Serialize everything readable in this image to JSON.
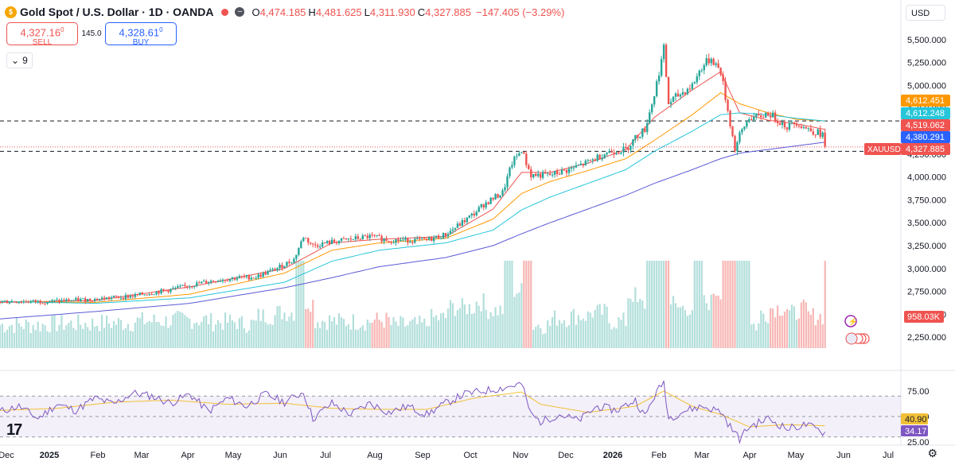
{
  "header": {
    "symbol_title": "Gold Spot / U.S. Dollar · 1D · OANDA",
    "open_label": "O",
    "open": "4,474.185",
    "high_label": "H",
    "high": "4,481.625",
    "low_label": "L",
    "low": "4,311.930",
    "close_label": "C",
    "close": "4,327.885",
    "change": "−147.405 (−3.29%)"
  },
  "trade": {
    "sell_price": "4,327.16",
    "sell_price_sup": "0",
    "sell_label": "SELL",
    "spread": "145.0",
    "buy_price": "4,328.61",
    "buy_price_sup": "0",
    "buy_label": "BUY"
  },
  "ma_chip": {
    "count": "9"
  },
  "currency": "USD",
  "colors": {
    "up": "#26a69a",
    "down": "#ef5350",
    "ma_fast": "#ef5350",
    "ma_mid": "#ff9800",
    "ma_slow": "#26c6da",
    "ma_long": "#5b5bd6",
    "rsi": "#7e57c2",
    "rsi_ma": "#f2c037"
  },
  "chart_data": {
    "type": "candlestick",
    "x_tick_labels": [
      "Dec",
      "2025",
      "Feb",
      "Mar",
      "Apr",
      "May",
      "Jun",
      "Jul",
      "Aug",
      "Sep",
      "Oct",
      "Nov",
      "Dec",
      "2026",
      "Feb",
      "Mar",
      "Apr",
      "May",
      "Jun",
      "Jul"
    ],
    "y_axis": {
      "ticks": [
        5500,
        5250,
        5000,
        4750,
        4500,
        4250,
        4000,
        3750,
        3500,
        3250,
        3000,
        2750,
        2500,
        2250
      ],
      "tick_labels": [
        "5,500.000",
        "5,250.000",
        "5,000.000",
        "4,750.000",
        "4,500.000",
        "4,250.000",
        "4,000.000",
        "3,750.000",
        "3,500.000",
        "3,250.000",
        "3,000.000",
        "2,750.000",
        "2,500.000",
        "2,250.000"
      ],
      "ylim": [
        2200,
        5620
      ]
    },
    "price_path": [
      [
        0,
        2640
      ],
      [
        5,
        2640
      ],
      [
        10,
        2665
      ],
      [
        14,
        2700
      ],
      [
        18,
        2770
      ],
      [
        22,
        2860
      ],
      [
        25,
        2900
      ],
      [
        27,
        2910
      ],
      [
        29,
        2990
      ],
      [
        31,
        3100
      ],
      [
        32,
        3350
      ],
      [
        33,
        3250
      ],
      [
        35,
        3290
      ],
      [
        39,
        3350
      ],
      [
        41,
        3310
      ],
      [
        45,
        3310
      ],
      [
        47,
        3370
      ],
      [
        50,
        3600
      ],
      [
        51,
        3700
      ],
      [
        53,
        3830
      ],
      [
        54,
        4150
      ],
      [
        55,
        4300
      ],
      [
        55.5,
        4150
      ],
      [
        56,
        4020
      ],
      [
        58,
        4020
      ],
      [
        60,
        4080
      ],
      [
        62,
        4160
      ],
      [
        64,
        4270
      ],
      [
        66,
        4300
      ],
      [
        67,
        4430
      ],
      [
        68,
        4520
      ],
      [
        69,
        4900
      ],
      [
        70,
        5400
      ],
      [
        70.5,
        4800
      ],
      [
        71,
        4850
      ],
      [
        73,
        5000
      ],
      [
        74,
        5200
      ],
      [
        75,
        5300
      ],
      [
        76,
        5150
      ],
      [
        77.5,
        4300
      ],
      [
        78,
        4450
      ],
      [
        79,
        4650
      ],
      [
        80,
        4650
      ],
      [
        81,
        4700
      ],
      [
        83,
        4550
      ],
      [
        84,
        4600
      ],
      [
        85,
        4530
      ],
      [
        86.8,
        4460
      ],
      [
        87,
        4328
      ]
    ],
    "moving_averages": [
      {
        "name": "",
        "color": "#ef5350",
        "values": [
          [
            0,
            2630
          ],
          [
            10,
            2650
          ],
          [
            20,
            2800
          ],
          [
            30,
            3000
          ],
          [
            35,
            3280
          ],
          [
            40,
            3320
          ],
          [
            47,
            3350
          ],
          [
            52,
            3650
          ],
          [
            55,
            4050
          ],
          [
            58,
            4050
          ],
          [
            62,
            4150
          ],
          [
            66,
            4300
          ],
          [
            69,
            4650
          ],
          [
            73,
            4950
          ],
          [
            76,
            5150
          ],
          [
            78,
            4700
          ],
          [
            81,
            4620
          ],
          [
            84,
            4580
          ],
          [
            87,
            4519
          ]
        ]
      },
      {
        "name": "",
        "color": "#ff9800",
        "values": [
          [
            0,
            2640
          ],
          [
            10,
            2630
          ],
          [
            20,
            2720
          ],
          [
            30,
            2950
          ],
          [
            35,
            3200
          ],
          [
            40,
            3280
          ],
          [
            47,
            3330
          ],
          [
            52,
            3540
          ],
          [
            55,
            3820
          ],
          [
            58,
            3950
          ],
          [
            62,
            4070
          ],
          [
            66,
            4200
          ],
          [
            69,
            4400
          ],
          [
            73,
            4680
          ],
          [
            76,
            4920
          ],
          [
            78,
            4800
          ],
          [
            81,
            4700
          ],
          [
            84,
            4630
          ],
          [
            87,
            4612
          ]
        ]
      },
      {
        "name": "",
        "color": "#26c6da",
        "values": [
          [
            0,
            2640
          ],
          [
            10,
            2620
          ],
          [
            20,
            2680
          ],
          [
            30,
            2850
          ],
          [
            35,
            3080
          ],
          [
            40,
            3200
          ],
          [
            47,
            3280
          ],
          [
            52,
            3420
          ],
          [
            55,
            3640
          ],
          [
            58,
            3780
          ],
          [
            62,
            3930
          ],
          [
            66,
            4080
          ],
          [
            69,
            4280
          ],
          [
            73,
            4500
          ],
          [
            76,
            4680
          ],
          [
            78,
            4700
          ],
          [
            81,
            4680
          ],
          [
            84,
            4640
          ],
          [
            87,
            4612
          ]
        ]
      },
      {
        "name": "",
        "color": "#5b5bd6",
        "values": [
          [
            0,
            2450
          ],
          [
            10,
            2530
          ],
          [
            20,
            2620
          ],
          [
            30,
            2790
          ],
          [
            35,
            2900
          ],
          [
            40,
            3020
          ],
          [
            47,
            3120
          ],
          [
            52,
            3250
          ],
          [
            55,
            3380
          ],
          [
            58,
            3500
          ],
          [
            62,
            3650
          ],
          [
            66,
            3800
          ],
          [
            69,
            3930
          ],
          [
            73,
            4080
          ],
          [
            76,
            4200
          ],
          [
            78,
            4260
          ],
          [
            81,
            4300
          ],
          [
            84,
            4340
          ],
          [
            87,
            4380
          ]
        ]
      }
    ],
    "price_labels": [
      {
        "value": 4612.451,
        "text": "4,612.451",
        "color": "#ff9800"
      },
      {
        "value": 4612.248,
        "text": "4,612.248",
        "color": "#26c6da"
      },
      {
        "value": 4519.062,
        "text": "4,519.062",
        "color": "#ef5350"
      },
      {
        "value": 4380.291,
        "text": "4,380.291",
        "color": "#2962ff"
      },
      {
        "value": 4327.885,
        "text": "4,327.885",
        "color": "#ef5350"
      }
    ],
    "symbol_tag": "XAUUSD",
    "horizontal_lines": [
      4612,
      4280
    ],
    "volume": {
      "last_label": "958.03K",
      "max": 1.6
    },
    "rsi": {
      "ticks": [
        75,
        50,
        25
      ],
      "tick_labels": [
        "75.00",
        "50.00",
        "25.00"
      ],
      "ylim": [
        22,
        92
      ],
      "value": 34.17,
      "value_label": "34.17",
      "ma_value": 40.9,
      "ma_label": "40.90",
      "path": [
        [
          0,
          55
        ],
        [
          2,
          60
        ],
        [
          4,
          48
        ],
        [
          6,
          62
        ],
        [
          8,
          56
        ],
        [
          10,
          68
        ],
        [
          12,
          62
        ],
        [
          14,
          73
        ],
        [
          16,
          70
        ],
        [
          18,
          63
        ],
        [
          20,
          72
        ],
        [
          22,
          55
        ],
        [
          24,
          68
        ],
        [
          26,
          60
        ],
        [
          28,
          72
        ],
        [
          30,
          64
        ],
        [
          32,
          74
        ],
        [
          33,
          48
        ],
        [
          35,
          63
        ],
        [
          37,
          52
        ],
        [
          39,
          63
        ],
        [
          41,
          54
        ],
        [
          43,
          60
        ],
        [
          45,
          52
        ],
        [
          47,
          63
        ],
        [
          49,
          72
        ],
        [
          51,
          75
        ],
        [
          53,
          78
        ],
        [
          55,
          82
        ],
        [
          56,
          52
        ],
        [
          57,
          45
        ],
        [
          59,
          52
        ],
        [
          61,
          46
        ],
        [
          63,
          60
        ],
        [
          65,
          56
        ],
        [
          67,
          66
        ],
        [
          68,
          50
        ],
        [
          69,
          70
        ],
        [
          70,
          84
        ],
        [
          70.5,
          48
        ],
        [
          72,
          55
        ],
        [
          74,
          60
        ],
        [
          76,
          55
        ],
        [
          77,
          40
        ],
        [
          78,
          28
        ],
        [
          79,
          40
        ],
        [
          81,
          48
        ],
        [
          83,
          38
        ],
        [
          85,
          42
        ],
        [
          87,
          34
        ]
      ],
      "ma_path": [
        [
          0,
          56
        ],
        [
          6,
          58
        ],
        [
          12,
          64
        ],
        [
          18,
          66
        ],
        [
          24,
          62
        ],
        [
          30,
          63
        ],
        [
          35,
          58
        ],
        [
          40,
          57
        ],
        [
          45,
          57
        ],
        [
          50,
          68
        ],
        [
          55,
          74
        ],
        [
          57,
          62
        ],
        [
          62,
          54
        ],
        [
          67,
          60
        ],
        [
          70,
          75
        ],
        [
          73,
          60
        ],
        [
          76,
          52
        ],
        [
          79,
          40
        ],
        [
          83,
          42
        ],
        [
          87,
          41
        ]
      ]
    }
  }
}
